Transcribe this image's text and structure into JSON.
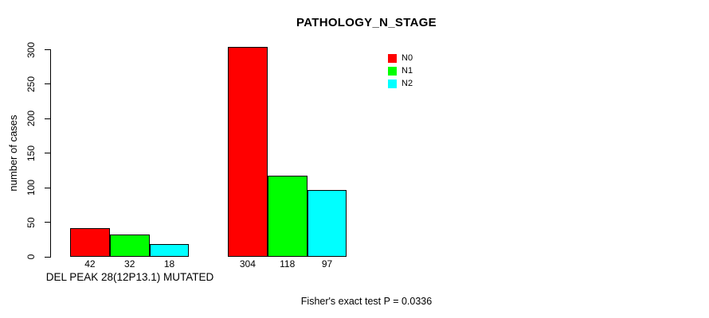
{
  "chart_data": {
    "type": "bar",
    "title": "PATHOLOGY_N_STAGE",
    "ylabel": "number of cases",
    "xlabel": "",
    "ylim": [
      0,
      300
    ],
    "yticks": [
      0,
      50,
      100,
      150,
      200,
      250,
      300
    ],
    "grid": false,
    "legend_position": "top-right",
    "categories": [
      "DEL PEAK 28(12P13.1) MUTATED",
      ""
    ],
    "series": [
      {
        "name": "N0",
        "color": "#ff0000",
        "values": [
          42,
          304
        ]
      },
      {
        "name": "N1",
        "color": "#00ff00",
        "values": [
          32,
          118
        ]
      },
      {
        "name": "N2",
        "color": "#00ffff",
        "values": [
          18,
          97
        ]
      }
    ],
    "bar_border_color": "#000000",
    "background_color": "#ffffff",
    "annotation": "Fisher's exact test P = 0.0336"
  }
}
